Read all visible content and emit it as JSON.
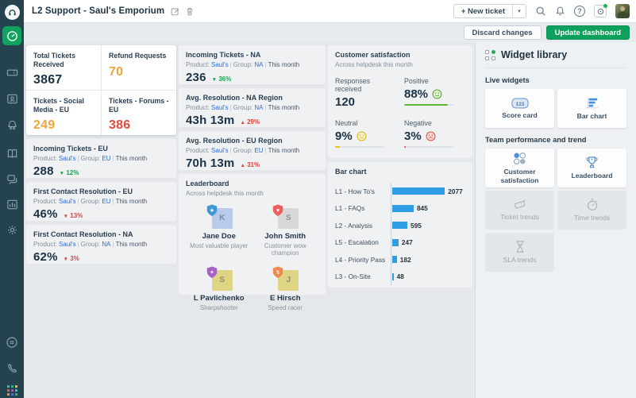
{
  "colors": {
    "sidebar_bg": "#25424f",
    "active_item_green": "#0fa35f",
    "update_button_green": "#0ea05d",
    "value_navy": "#1b3145",
    "value_amber": "#eda63d",
    "value_red": "#e34a3f",
    "delta_good_green": "#13a24f",
    "delta_bad_red": "#d6473d",
    "link_blue": "#2f6ecb",
    "bar_blue": "#2f9de4",
    "positive_green": "#5fb636",
    "neutral_yellow": "#edc200",
    "negative_red": "#e0443a"
  },
  "sidebar": {
    "items": [
      "dashboard",
      "tickets",
      "contacts",
      "social",
      "solutions",
      "forums",
      "analytics",
      "admin"
    ],
    "bottom_items": [
      "freshconnect",
      "phone",
      "apps-switcher"
    ]
  },
  "topbar": {
    "title": "L2 Support - Saul's Emporium",
    "new_ticket": "+ New ticket",
    "caret": "▾",
    "help_glyph": "?"
  },
  "toolbar": {
    "discard": "Discard changes",
    "update": "Update dashboard"
  },
  "labels": {
    "product": "Product:",
    "group": "Group:",
    "separator": "|"
  },
  "mini_cards": [
    {
      "title": "Total Tickets Received",
      "value": "3867",
      "color": "#1b3145"
    },
    {
      "title": "Refund Requests",
      "value": "70",
      "color": "#eda63d"
    },
    {
      "title": "Tickets - Social Media - EU",
      "value": "249",
      "color": "#eda63d"
    },
    {
      "title": "Tickets - Forums - EU",
      "value": "386",
      "color": "#e34a3f"
    }
  ],
  "col1_cards": [
    {
      "title": "Incoming Tickets - EU",
      "product": "Saul's",
      "group": "EU",
      "period": "This month",
      "value": "288",
      "delta": {
        "arrow": "▼",
        "pct": "12%",
        "tone": "good"
      }
    },
    {
      "title": "First Contact Resolution - EU",
      "product": "Saul's",
      "group": "EU",
      "period": "This month",
      "value": "46%",
      "delta": {
        "arrow": "▼",
        "pct": "13%",
        "tone": "bad"
      }
    },
    {
      "title": "First Contact Resolution - NA",
      "product": "Saul's",
      "group": "NA",
      "period": "This month",
      "value": "62%",
      "delta": {
        "arrow": "▼",
        "pct": "3%",
        "tone": "bad"
      }
    }
  ],
  "col2_cards": [
    {
      "title": "Incoming Tickets - NA",
      "product": "Saul's",
      "group": "NA",
      "period": "This month",
      "value": "236",
      "delta": {
        "arrow": "▼",
        "pct": "36%",
        "tone": "good"
      }
    },
    {
      "title": "Avg. Resolution - NA Region",
      "product": "Saul's",
      "group": "NA",
      "period": "This month",
      "value": "43h 13m",
      "delta": {
        "arrow": "▲",
        "pct": "29%",
        "tone": "bad"
      }
    },
    {
      "title": "Avg. Resolution - EU Region",
      "product": "Saul's",
      "group": "EU",
      "period": "This month",
      "value": "70h 13m",
      "delta": {
        "arrow": "▲",
        "pct": "31%",
        "tone": "bad"
      }
    }
  ],
  "leaderboard": {
    "title": "Leaderboard",
    "subtitle": "Across helpdesk this month",
    "entries": [
      {
        "name": "Jane Doe",
        "award": "Most valuable player",
        "letter": "K",
        "avatar_color": "#b9cbe8",
        "badge_color": "#3e98d3",
        "badge_symbol": "★"
      },
      {
        "name": "John Smith",
        "award": "Customer wow champion",
        "letter": "S",
        "avatar_color": "#d8d8d8",
        "badge_color": "#ec5f5f",
        "badge_symbol": "♥"
      },
      {
        "name": "L Pavlichenko",
        "award": "Sharpshooter",
        "letter": "S",
        "avatar_color": "#ddd584",
        "badge_color": "#a662c4",
        "badge_symbol": "✦"
      },
      {
        "name": "E Hirsch",
        "award": "Speed racer",
        "letter": "J",
        "avatar_color": "#ddd584",
        "badge_color": "#ee8a50",
        "badge_symbol": "↯"
      }
    ]
  },
  "csat": {
    "title": "Customer satisfaction",
    "subtitle": "Across helpdesk this month",
    "metrics": [
      {
        "label": "Responses received",
        "value": "120",
        "face": null,
        "pct": null
      },
      {
        "label": "Positive",
        "value": "88%",
        "face": "happy",
        "pct": 88,
        "color": "#5fb636"
      },
      {
        "label": "Neutral",
        "value": "9%",
        "face": "neutral",
        "pct": 9,
        "color": "#edc200"
      },
      {
        "label": "Negative",
        "value": "3%",
        "face": "sad",
        "pct": 3,
        "color": "#e0443a"
      }
    ]
  },
  "chart_data": {
    "type": "bar",
    "title": "Bar chart",
    "orientation": "horizontal",
    "categories": [
      "L1 - How To's",
      "L1 - FAQs",
      "L2 - Analysis",
      "L5 - Escalation",
      "L4 - Priority Pass",
      "L3 - On-Site"
    ],
    "values": [
      2077,
      845,
      595,
      247,
      182,
      48
    ],
    "bar_color": "#2f9de4",
    "xlim": [
      0,
      2077
    ],
    "grid": false,
    "legend": "none"
  },
  "library": {
    "title": "Widget library",
    "sections": [
      {
        "label": "Live widgets",
        "items": [
          {
            "name": "Score card",
            "icon": "scorecard",
            "enabled": true
          },
          {
            "name": "Bar chart",
            "icon": "barchart",
            "enabled": true
          }
        ]
      },
      {
        "label": "Team performance and trend",
        "items": [
          {
            "name": "Customer satisfaction",
            "icon": "csat-faces",
            "enabled": true
          },
          {
            "name": "Leaderboard",
            "icon": "trophy",
            "enabled": true
          },
          {
            "name": "Ticket trends",
            "icon": "ticket-trends",
            "enabled": false
          },
          {
            "name": "Time trends",
            "icon": "stopwatch",
            "enabled": false
          },
          {
            "name": "SLA trends",
            "icon": "hourglass",
            "enabled": false
          }
        ]
      }
    ]
  }
}
